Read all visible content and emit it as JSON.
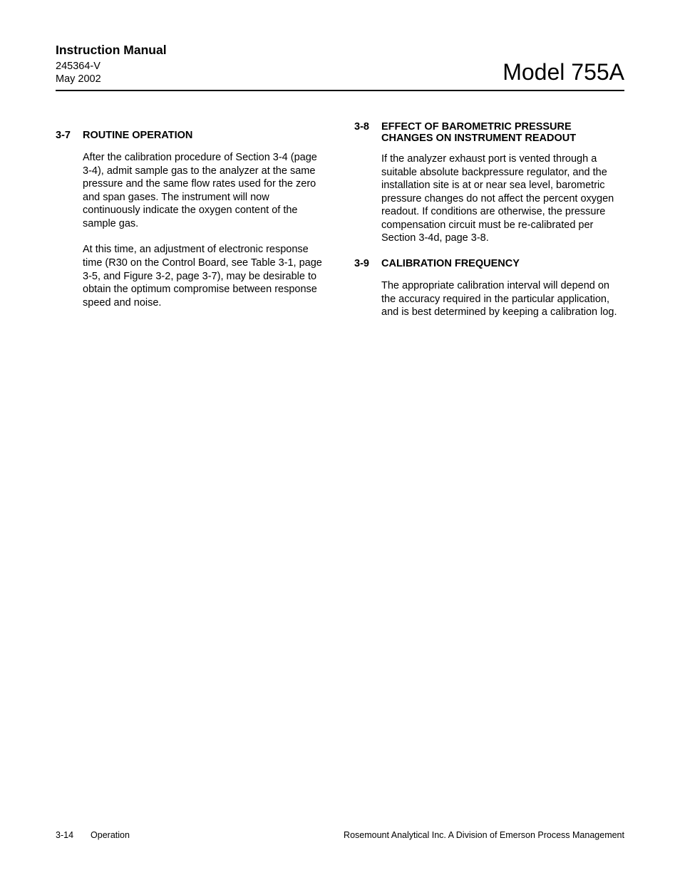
{
  "header": {
    "manual_title": "Instruction Manual",
    "doc_number": "245364-V",
    "doc_date": "May 2002",
    "model": "Model 755A"
  },
  "left_column": {
    "section": {
      "number": "3-7",
      "title": "ROUTINE OPERATION",
      "paragraphs": [
        "After the calibration procedure of Section 3-4 (page 3-4), admit sample gas to the analyzer at the same pressure and the same flow rates used for the zero and span gases. The instrument will now continuously indicate the oxygen content of the sample gas.",
        "At this time, an adjustment of electronic response time (R30 on the Control Board, see Table 3-1, page 3-5, and Figure 3-2, page 3-7), may be desirable to obtain the optimum compromise between response speed and noise."
      ]
    }
  },
  "right_column": {
    "sections": [
      {
        "number": "3-8",
        "title": "EFFECT OF BAROMETRIC PRESSURE CHANGES ON INSTRUMENT READOUT",
        "paragraphs": [
          "If the analyzer exhaust port is vented through a suitable absolute backpressure regulator, and the installation site is at or near sea level, barometric pressure changes do not affect the percent oxygen readout.  If conditions are otherwise, the pressure compensation circuit must be re-calibrated per Section 3-4d, page 3-8."
        ]
      },
      {
        "number": "3-9",
        "title": "CALIBRATION FREQUENCY",
        "paragraphs": [
          "The appropriate calibration interval will depend on the accuracy required in the particular application, and is best determined by keeping a calibration log."
        ]
      }
    ]
  },
  "footer": {
    "page_number": "3-14",
    "section_name": "Operation",
    "company": "Rosemount Analytical Inc.    A Division of Emerson Process Management"
  }
}
